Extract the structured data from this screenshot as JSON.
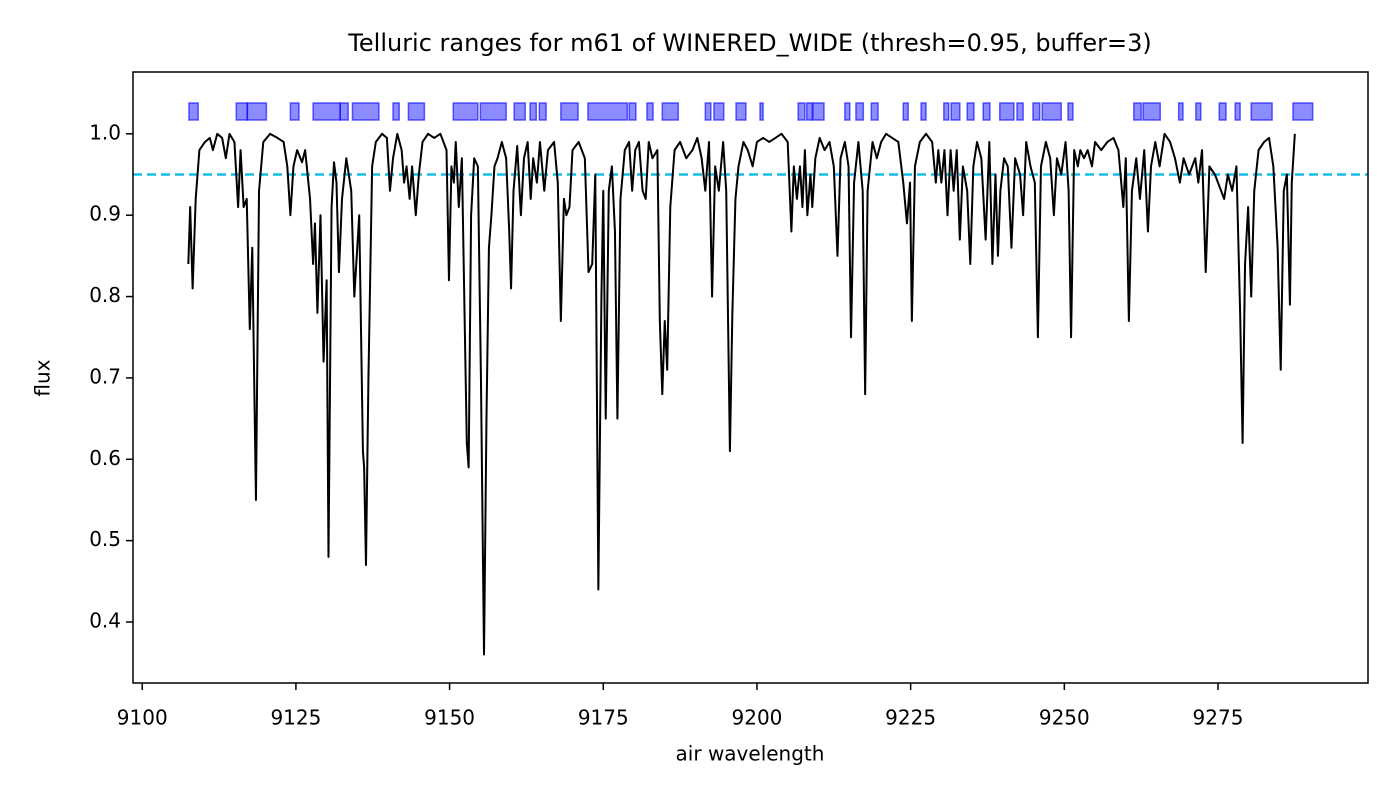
{
  "chart_data": {
    "type": "line",
    "title": "Telluric ranges for m61 of WINERED_WIDE (thresh=0.95, buffer=3)",
    "xlabel": "air wavelength",
    "ylabel": "flux",
    "color": "#000000",
    "x": [
      9107.5,
      9107.8,
      9108.2,
      9108.7,
      9109.3,
      9110.2,
      9111.0,
      9111.5,
      9112.2,
      9113.0,
      9113.6,
      9114.2,
      9115.0,
      9115.6,
      9116.0,
      9116.5,
      9117.0,
      9117.5,
      9117.9,
      9118.5,
      9119.0,
      9119.7,
      9120.8,
      9122.0,
      9123.0,
      9123.6,
      9124.1,
      9124.6,
      9125.2,
      9126.0,
      9126.5,
      9127.3,
      9127.8,
      9128.1,
      9128.5,
      9129.0,
      9129.5,
      9130.0,
      9130.3,
      9130.8,
      9131.2,
      9131.6,
      9132.0,
      9132.5,
      9133.2,
      9134.0,
      9134.5,
      9135.3,
      9135.9,
      9136.1,
      9136.4,
      9136.8,
      9137.4,
      9138.0,
      9139.0,
      9139.8,
      9140.3,
      9140.8,
      9141.5,
      9142.2,
      9142.6,
      9143.0,
      9143.5,
      9143.9,
      9144.5,
      9145.0,
      9145.6,
      9146.5,
      9147.5,
      9148.5,
      9149.5,
      9149.9,
      9150.3,
      9150.7,
      9151.0,
      9151.5,
      9152.0,
      9152.5,
      9152.8,
      9153.1,
      9153.5,
      9154.0,
      9154.6,
      9155.1,
      9155.6,
      9156.0,
      9156.4,
      9156.8,
      9157.3,
      9157.8,
      9158.5,
      9159.2,
      9159.7,
      9160.0,
      9160.4,
      9161.0,
      9161.6,
      9162.1,
      9162.7,
      9163.2,
      9163.6,
      9164.2,
      9164.7,
      9165.4,
      9166.0,
      9167.0,
      9167.6,
      9168.1,
      9168.6,
      9169.0,
      9169.5,
      9170.0,
      9171.0,
      9172.0,
      9172.6,
      9173.2,
      9173.7,
      9174.2,
      9174.7,
      9175.0,
      9175.4,
      9175.9,
      9176.4,
      9176.9,
      9177.3,
      9177.8,
      9178.5,
      9179.2,
      9179.7,
      9180.2,
      9180.8,
      9181.4,
      9181.9,
      9182.4,
      9183.0,
      9183.8,
      9184.2,
      9184.6,
      9185.0,
      9185.4,
      9185.9,
      9186.6,
      9187.5,
      9188.5,
      9189.5,
      9190.3,
      9191.0,
      9191.6,
      9192.2,
      9192.7,
      9193.2,
      9193.8,
      9194.5,
      9195.0,
      9195.6,
      9196.0,
      9196.5,
      9197.0,
      9197.8,
      9198.5,
      9199.3,
      9200.0,
      9201.0,
      9202.0,
      9203.0,
      9204.0,
      9205.0,
      9205.6,
      9206.0,
      9206.5,
      9207.0,
      9207.4,
      9207.8,
      9208.2,
      9208.7,
      9209.0,
      9209.5,
      9210.2,
      9211.0,
      9211.8,
      9212.5,
      9213.1,
      9213.6,
      9214.3,
      9214.9,
      9215.3,
      9215.8,
      9216.5,
      9217.2,
      9217.6,
      9218.0,
      9218.8,
      9219.5,
      9220.2,
      9221.0,
      9222.0,
      9223.0,
      9223.8,
      9224.4,
      9224.9,
      9225.2,
      9225.7,
      9226.5,
      9227.5,
      9228.5,
      9229.1,
      9229.5,
      9230.0,
      9230.5,
      9231.0,
      9231.5,
      9232.0,
      9232.5,
      9233.0,
      9233.5,
      9234.2,
      9234.7,
      9235.2,
      9235.8,
      9236.5,
      9237.2,
      9237.8,
      9238.3,
      9238.8,
      9239.2,
      9239.6,
      9240.2,
      9240.8,
      9241.4,
      9242.0,
      9242.8,
      9243.3,
      9243.8,
      9244.5,
      9245.2,
      9245.7,
      9246.2,
      9247.0,
      9247.7,
      9248.3,
      9248.8,
      9249.5,
      9250.2,
      9250.7,
      9251.1,
      9251.6,
      9252.2,
      9252.6,
      9253.2,
      9253.8,
      9254.5,
      9255.0,
      9256.0,
      9257.0,
      9258.0,
      9258.8,
      9259.6,
      9260.0,
      9260.5,
      9261.0,
      9261.7,
      9262.3,
      9263.0,
      9263.6,
      9264.1,
      9264.8,
      9265.5,
      9266.3,
      9267.2,
      9268.0,
      9268.8,
      9269.4,
      9270.3,
      9271.3,
      9271.8,
      9272.4,
      9273.0,
      9273.6,
      9274.5,
      9275.5,
      9276.0,
      9276.6,
      9277.3,
      9278.0,
      9278.6,
      9279.0,
      9279.4,
      9279.9,
      9280.4,
      9280.9,
      9281.6,
      9282.5,
      9283.3,
      9284.0,
      9284.7,
      9285.2,
      9285.7,
      9286.2,
      9286.7,
      9287.0,
      9287.5
    ],
    "values": [
      0.84,
      0.91,
      0.81,
      0.92,
      0.98,
      0.99,
      0.995,
      0.98,
      1.0,
      0.995,
      0.97,
      1.0,
      0.99,
      0.91,
      0.98,
      0.91,
      0.92,
      0.76,
      0.86,
      0.55,
      0.93,
      0.99,
      1.0,
      0.995,
      0.99,
      0.96,
      0.9,
      0.96,
      0.98,
      0.965,
      0.98,
      0.92,
      0.84,
      0.89,
      0.78,
      0.9,
      0.72,
      0.82,
      0.48,
      0.91,
      0.965,
      0.94,
      0.83,
      0.92,
      0.97,
      0.93,
      0.8,
      0.9,
      0.61,
      0.59,
      0.47,
      0.7,
      0.96,
      0.99,
      1.0,
      0.995,
      0.93,
      0.97,
      1.0,
      0.98,
      0.94,
      0.96,
      0.92,
      0.96,
      0.9,
      0.95,
      0.99,
      1.0,
      0.995,
      1.0,
      0.98,
      0.82,
      0.96,
      0.94,
      0.99,
      0.91,
      0.97,
      0.75,
      0.62,
      0.59,
      0.9,
      0.97,
      0.96,
      0.7,
      0.36,
      0.65,
      0.86,
      0.9,
      0.96,
      0.97,
      0.99,
      0.97,
      0.88,
      0.81,
      0.93,
      0.985,
      0.9,
      0.97,
      0.99,
      0.92,
      0.97,
      0.94,
      0.99,
      0.93,
      0.98,
      0.99,
      0.94,
      0.77,
      0.92,
      0.9,
      0.91,
      0.98,
      0.99,
      0.97,
      0.83,
      0.84,
      0.95,
      0.44,
      0.8,
      0.93,
      0.65,
      0.93,
      0.96,
      0.88,
      0.65,
      0.92,
      0.98,
      0.99,
      0.93,
      0.98,
      0.99,
      0.93,
      0.92,
      0.99,
      0.97,
      0.98,
      0.77,
      0.68,
      0.77,
      0.71,
      0.91,
      0.98,
      0.99,
      0.97,
      0.98,
      0.995,
      0.97,
      0.93,
      0.99,
      0.8,
      0.96,
      0.93,
      0.99,
      0.93,
      0.61,
      0.78,
      0.92,
      0.96,
      0.99,
      0.98,
      0.96,
      0.99,
      0.995,
      0.99,
      0.995,
      1.0,
      0.99,
      0.88,
      0.96,
      0.92,
      0.96,
      0.91,
      0.98,
      0.9,
      0.95,
      0.91,
      0.97,
      0.995,
      0.98,
      0.99,
      0.96,
      0.85,
      0.97,
      0.99,
      0.96,
      0.75,
      0.94,
      0.99,
      0.93,
      0.68,
      0.93,
      0.99,
      0.97,
      0.99,
      1.0,
      0.995,
      0.99,
      0.94,
      0.89,
      0.94,
      0.77,
      0.96,
      0.99,
      1.0,
      0.99,
      0.94,
      0.98,
      0.94,
      0.98,
      0.9,
      0.98,
      0.93,
      0.98,
      0.87,
      0.96,
      0.93,
      0.84,
      0.96,
      0.99,
      0.97,
      0.87,
      0.99,
      0.84,
      0.95,
      0.85,
      0.93,
      0.97,
      0.96,
      0.86,
      0.97,
      0.95,
      0.9,
      0.99,
      0.96,
      0.94,
      0.75,
      0.96,
      0.99,
      0.97,
      0.9,
      0.97,
      0.95,
      0.99,
      0.93,
      0.75,
      0.98,
      0.96,
      0.98,
      0.97,
      0.98,
      0.96,
      0.99,
      0.98,
      0.99,
      0.995,
      0.98,
      0.91,
      0.97,
      0.77,
      0.93,
      0.97,
      0.92,
      0.98,
      0.88,
      0.96,
      0.99,
      0.96,
      1.0,
      0.99,
      0.97,
      0.94,
      0.97,
      0.95,
      0.97,
      0.94,
      0.98,
      0.83,
      0.96,
      0.95,
      0.93,
      0.92,
      0.95,
      0.93,
      0.96,
      0.78,
      0.62,
      0.84,
      0.91,
      0.8,
      0.93,
      0.98,
      0.99,
      0.995,
      0.96,
      0.86,
      0.71,
      0.93,
      0.95,
      0.79,
      0.94,
      1.0
    ],
    "threshold": 0.95,
    "threshold_color": "#17bde8",
    "range_color": "#0000ff",
    "ranges": [
      [
        9107.6,
        9109.1
      ],
      [
        9115.3,
        9117.1
      ],
      [
        9117.1,
        9120.2
      ],
      [
        9124.1,
        9125.5
      ],
      [
        9127.8,
        9132.2
      ],
      [
        9132.2,
        9133.5
      ],
      [
        9134.2,
        9138.5
      ],
      [
        9140.8,
        9141.8
      ],
      [
        9143.3,
        9145.9
      ],
      [
        9150.6,
        9154.6
      ],
      [
        9155.0,
        9159.2
      ],
      [
        9160.5,
        9162.3
      ],
      [
        9163.1,
        9164.1
      ],
      [
        9164.6,
        9165.7
      ],
      [
        9168.1,
        9170.9
      ],
      [
        9172.5,
        9178.9
      ],
      [
        9179.2,
        9180.3
      ],
      [
        9182.1,
        9183.1
      ],
      [
        9184.6,
        9187.2
      ],
      [
        9191.6,
        9192.5
      ],
      [
        9193.0,
        9194.6
      ],
      [
        9196.6,
        9198.2
      ],
      [
        9200.5,
        9201.0
      ],
      [
        9206.7,
        9207.8
      ],
      [
        9208.1,
        9209.0
      ],
      [
        9209.1,
        9210.9
      ],
      [
        9214.3,
        9215.1
      ],
      [
        9216.1,
        9217.3
      ],
      [
        9218.6,
        9219.7
      ],
      [
        9223.8,
        9224.6
      ],
      [
        9226.7,
        9227.5
      ],
      [
        9230.4,
        9231.2
      ],
      [
        9231.6,
        9233.0
      ],
      [
        9234.2,
        9235.3
      ],
      [
        9236.8,
        9237.9
      ],
      [
        9239.5,
        9241.8
      ],
      [
        9242.3,
        9243.3
      ],
      [
        9244.9,
        9246.0
      ],
      [
        9246.4,
        9249.5
      ],
      [
        9250.6,
        9251.4
      ],
      [
        9261.3,
        9262.5
      ],
      [
        9262.8,
        9265.6
      ],
      [
        9268.6,
        9269.3
      ],
      [
        9271.4,
        9272.2
      ],
      [
        9275.2,
        9276.3
      ],
      [
        9277.8,
        9278.6
      ],
      [
        9280.4,
        9283.8
      ],
      [
        9287.2,
        9290.4
      ]
    ],
    "xlim": [
      9098.5,
      9299.4
    ],
    "ylim": [
      0.325,
      1.076
    ],
    "xticks": [
      9100,
      9125,
      9150,
      9175,
      9200,
      9225,
      9250,
      9275
    ],
    "yticks": [
      0.4,
      0.5,
      0.6,
      0.7,
      0.8,
      0.9,
      {
        "value": 1,
        "label": "1.0"
      }
    ]
  }
}
